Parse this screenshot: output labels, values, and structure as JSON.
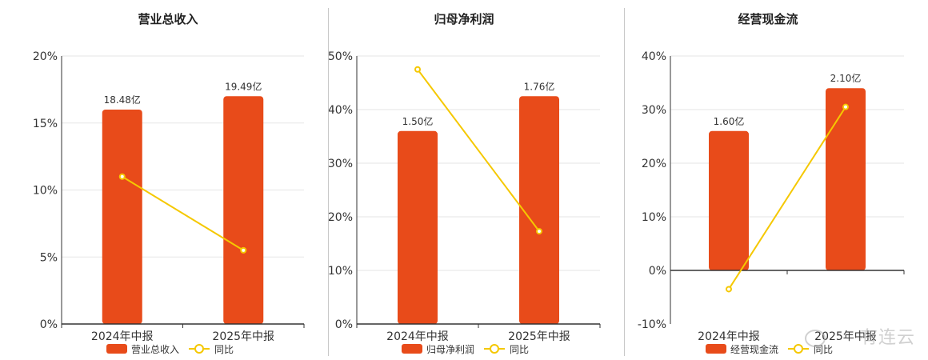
{
  "colors": {
    "bar": "#E84B1A",
    "line": "#F5C800",
    "axis": "#333333",
    "grid": "#e6e6e6",
    "text": "#333333"
  },
  "watermark": "有连云",
  "legend_line_label": "同比",
  "chart_data": [
    {
      "type": "bar",
      "title": "营业总收入",
      "categories": [
        "2024年中报",
        "2025年中报"
      ],
      "yticks": [
        "0%",
        "5%",
        "10%",
        "15%",
        "20%"
      ],
      "ylim": [
        0,
        20
      ],
      "series": [
        {
          "name": "营业总收入",
          "type": "bar",
          "values": [
            16.0,
            17.0
          ],
          "labels": [
            "18.48亿",
            "19.49亿"
          ]
        },
        {
          "name": "同比",
          "type": "line",
          "values": [
            11.0,
            5.5
          ]
        }
      ]
    },
    {
      "type": "bar",
      "title": "归母净利润",
      "categories": [
        "2024年中报",
        "2025年中报"
      ],
      "yticks": [
        "0%",
        "10%",
        "20%",
        "30%",
        "40%",
        "50%"
      ],
      "ylim": [
        0,
        50
      ],
      "series": [
        {
          "name": "归母净利润",
          "type": "bar",
          "values": [
            36.0,
            42.5
          ],
          "labels": [
            "1.50亿",
            "1.76亿"
          ]
        },
        {
          "name": "同比",
          "type": "line",
          "values": [
            47.5,
            17.3
          ]
        }
      ]
    },
    {
      "type": "bar",
      "title": "经营现金流",
      "categories": [
        "2024年中报",
        "2025年中报"
      ],
      "yticks": [
        "-10%",
        "0%",
        "10%",
        "20%",
        "30%",
        "40%"
      ],
      "ylim": [
        -10,
        40
      ],
      "series": [
        {
          "name": "经营现金流",
          "type": "bar",
          "values": [
            26.0,
            34.0
          ],
          "labels": [
            "1.60亿",
            "2.10亿"
          ]
        },
        {
          "name": "同比",
          "type": "line",
          "values": [
            -3.5,
            30.5
          ]
        }
      ]
    }
  ]
}
